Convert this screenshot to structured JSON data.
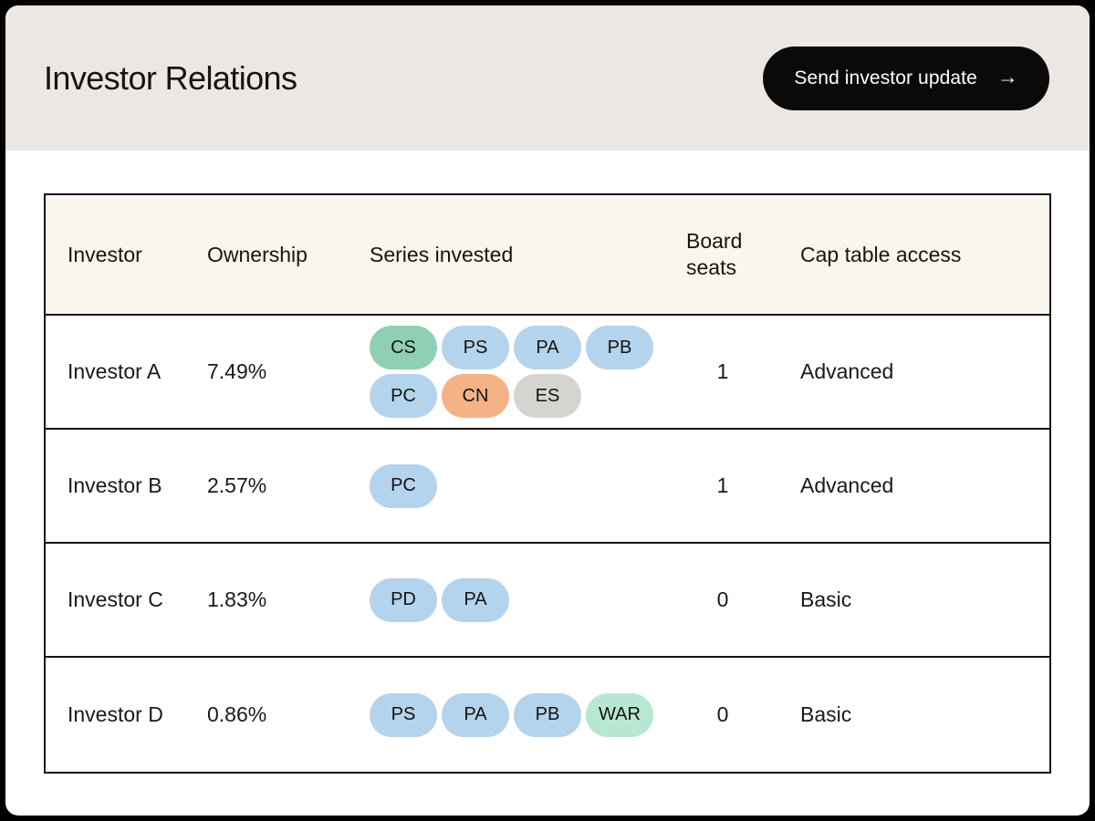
{
  "header": {
    "title": "Investor Relations",
    "button": {
      "label": "Send investor update",
      "arrow_icon": "→"
    }
  },
  "table": {
    "columns": {
      "investor": "Investor",
      "ownership": "Ownership",
      "series": "Series invested",
      "board_seats": "Board seats",
      "cap_table_access": "Cap table access"
    },
    "rows": [
      {
        "investor": "Investor A",
        "ownership": "7.49%",
        "series": [
          {
            "label": "CS",
            "color": "#8FD0B4"
          },
          {
            "label": "PS",
            "color": "#B4D3EC"
          },
          {
            "label": "PA",
            "color": "#B4D3EC"
          },
          {
            "label": "PB",
            "color": "#B4D3EC"
          },
          {
            "label": "PC",
            "color": "#B4D3EC"
          },
          {
            "label": "CN",
            "color": "#F4B286"
          },
          {
            "label": "ES",
            "color": "#D6D4D1"
          }
        ],
        "board_seats": "1",
        "cap_table_access": "Advanced"
      },
      {
        "investor": "Investor B",
        "ownership": "2.57%",
        "series": [
          {
            "label": "PC",
            "color": "#B4D3EC"
          }
        ],
        "board_seats": "1",
        "cap_table_access": "Advanced"
      },
      {
        "investor": "Investor C",
        "ownership": "1.83%",
        "series": [
          {
            "label": "PD",
            "color": "#B4D3EC"
          },
          {
            "label": "PA",
            "color": "#B4D3EC"
          }
        ],
        "board_seats": "0",
        "cap_table_access": "Basic"
      },
      {
        "investor": "Investor D",
        "ownership": "0.86%",
        "series": [
          {
            "label": "PS",
            "color": "#B4D3EC"
          },
          {
            "label": "PA",
            "color": "#B4D3EC"
          },
          {
            "label": "PB",
            "color": "#B4D3EC"
          },
          {
            "label": "WAR",
            "color": "#B7E7D3"
          }
        ],
        "board_seats": "0",
        "cap_table_access": "Basic"
      }
    ]
  },
  "colors": {
    "frame_bg": "#000000",
    "card_bg": "#FFFFFF",
    "header_band_bg": "#ECE7E2",
    "table_header_bg": "#FAF6EE",
    "button_bg": "#0A0A0A",
    "button_text": "#FFFFFF",
    "border": "#141414",
    "badge_blue": "#B4D3EC",
    "badge_green": "#8FD0B4",
    "badge_orange": "#F4B286",
    "badge_gray": "#D6D4D1",
    "badge_mint": "#B7E7D3"
  }
}
